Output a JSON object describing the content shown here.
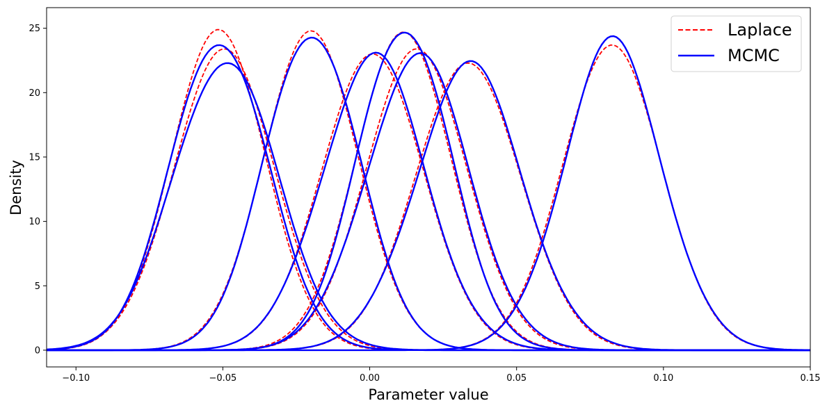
{
  "chart_data": {
    "type": "line",
    "title": "",
    "xlabel": "Parameter value",
    "ylabel": "Density",
    "xlim": [
      -0.11,
      0.15
    ],
    "ylim": [
      -1.3,
      26.6
    ],
    "x_ticks": [
      -0.1,
      -0.05,
      0.0,
      0.05,
      0.1,
      0.15
    ],
    "x_tick_labels": [
      "−0.10",
      "−0.05",
      "0.00",
      "0.05",
      "0.10",
      "0.15"
    ],
    "y_ticks": [
      0,
      5,
      10,
      15,
      20,
      25
    ],
    "y_tick_labels": [
      "0",
      "5",
      "10",
      "15",
      "20",
      "25"
    ],
    "grid": false,
    "legend": {
      "position": "top-right",
      "entries": [
        {
          "label": "Laplace",
          "color": "#ff0000",
          "style": "dashed"
        },
        {
          "label": "MCMC",
          "color": "#0000ff",
          "style": "solid"
        }
      ]
    },
    "x_range": [
      -0.11,
      0.15
    ],
    "components": [
      {
        "mean": -0.0515,
        "laplace_peak": 24.9,
        "mcmc_peak": 24.3
      },
      {
        "mean": -0.0495,
        "laplace_peak": 23.4,
        "mcmc_peak": 22.7
      },
      {
        "mean": -0.02,
        "laplace_peak": 24.8,
        "mcmc_peak": 24.9
      },
      {
        "mean": 0.001,
        "laplace_peak": 23.0,
        "mcmc_peak": 22.8
      },
      {
        "mean": 0.0115,
        "laplace_peak": 24.7,
        "mcmc_peak": 25.3
      },
      {
        "mean": 0.016,
        "laplace_peak": 23.4,
        "mcmc_peak": 22.9
      },
      {
        "mean": 0.0335,
        "laplace_peak": 22.3,
        "mcmc_peak": 22.0
      },
      {
        "mean": 0.0825,
        "laplace_peak": 23.7,
        "mcmc_peak": 23.8
      }
    ],
    "series": [
      {
        "name": "Laplace",
        "color": "#ff0000",
        "dash": "dashed"
      },
      {
        "name": "MCMC",
        "color": "#0000ff",
        "dash": "solid"
      }
    ]
  }
}
